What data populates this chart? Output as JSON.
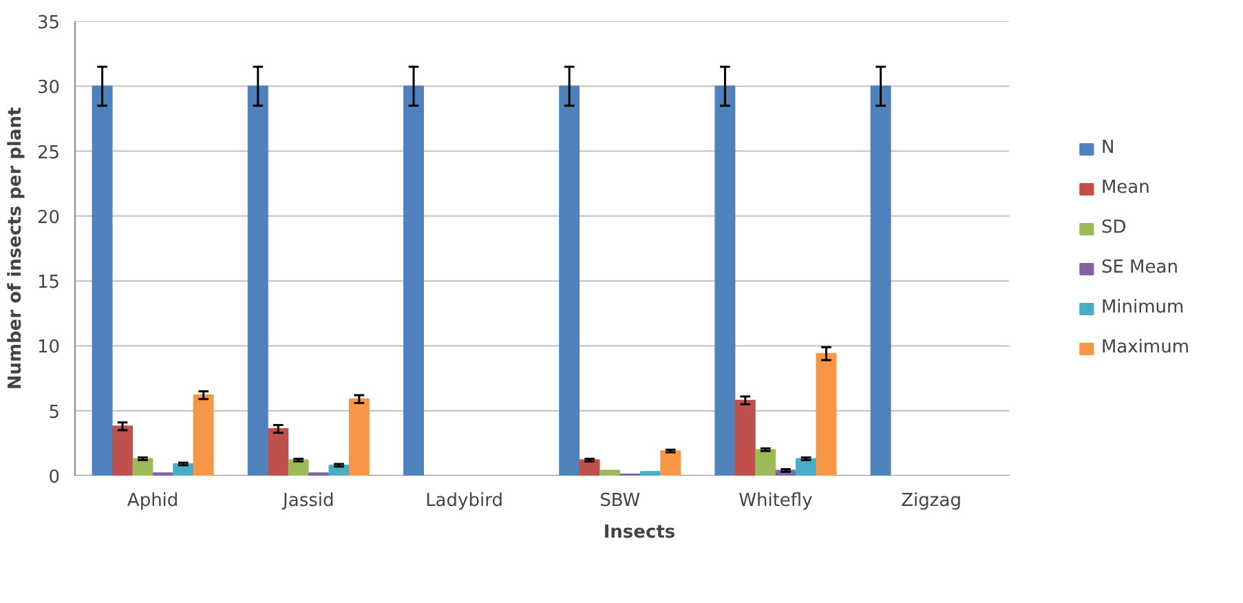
{
  "chart_data": {
    "type": "bar",
    "xlabel": "Insects",
    "ylabel": "Number of insects per plant",
    "categories": [
      "Aphid",
      "Jassid",
      "Ladybird",
      "SBW",
      "Whitefly",
      "Zigzag"
    ],
    "series": [
      {
        "name": "N",
        "color": "#4f81bd",
        "values": [
          30,
          30,
          30,
          30,
          30,
          30
        ],
        "errors": [
          1.5,
          1.5,
          1.5,
          1.5,
          1.5,
          1.5
        ]
      },
      {
        "name": "Mean",
        "color": "#c0504d",
        "values": [
          3.8,
          3.6,
          null,
          1.2,
          5.8,
          null
        ],
        "errors": [
          0.3,
          0.3,
          null,
          0.1,
          0.3,
          null
        ]
      },
      {
        "name": "SD",
        "color": "#9bbb59",
        "values": [
          1.3,
          1.2,
          null,
          0.4,
          2.0,
          null
        ],
        "errors": [
          0.1,
          0.1,
          null,
          null,
          0.1,
          null
        ]
      },
      {
        "name": "SE Mean",
        "color": "#8064a2",
        "values": [
          0.2,
          0.2,
          null,
          0.1,
          0.4,
          null
        ],
        "errors": [
          null,
          null,
          null,
          null,
          0.1,
          null
        ]
      },
      {
        "name": "Minimum",
        "color": "#4bacc6",
        "values": [
          0.9,
          0.8,
          null,
          0.3,
          1.3,
          null
        ],
        "errors": [
          0.1,
          0.1,
          null,
          null,
          0.1,
          null
        ]
      },
      {
        "name": "Maximum",
        "color": "#f79646",
        "values": [
          6.2,
          5.9,
          null,
          1.9,
          9.4,
          null
        ],
        "errors": [
          0.3,
          0.3,
          null,
          0.1,
          0.5,
          null
        ]
      }
    ],
    "ylim": [
      0,
      35
    ],
    "yticks": [
      0,
      5,
      10,
      15,
      20,
      25,
      30,
      35
    ],
    "grid": "y",
    "legend": "right"
  }
}
